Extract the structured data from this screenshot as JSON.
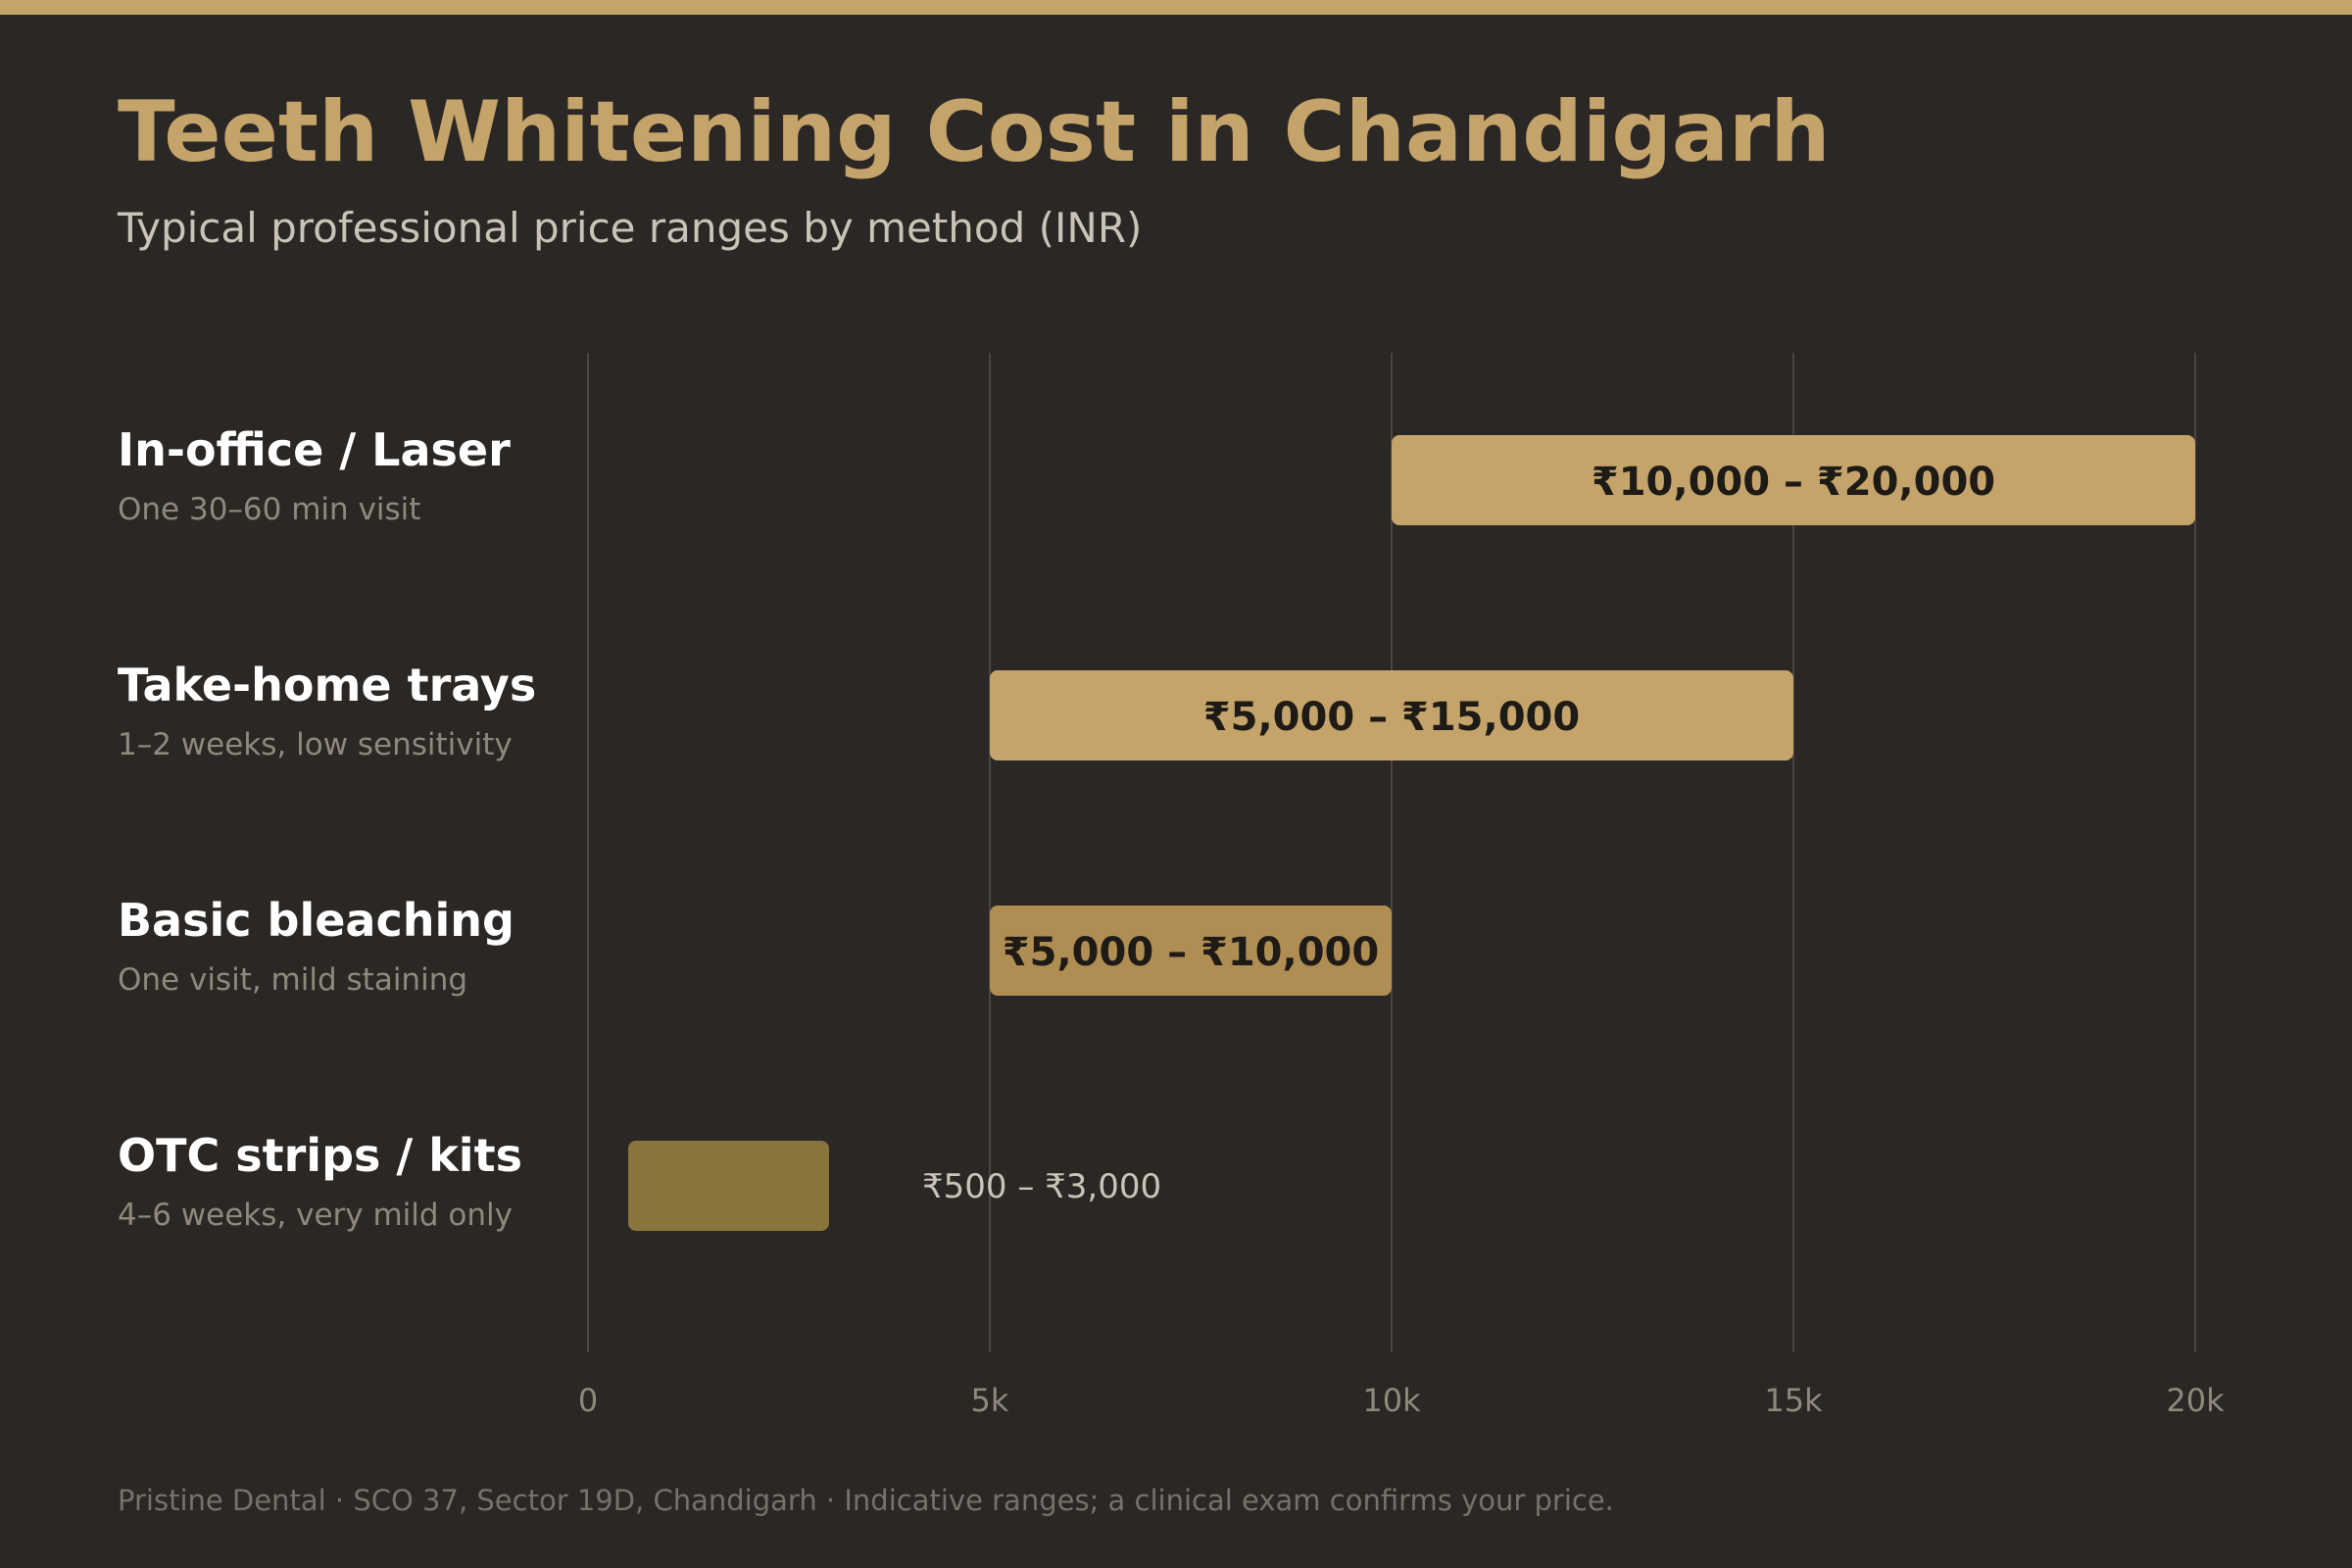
{
  "header": {
    "title": "Teeth Whitening Cost in Chandigarh",
    "subtitle": "Typical professional price ranges by method (INR)"
  },
  "colors": {
    "background": "#2b2724",
    "accent": "#c4a46b",
    "bar_mid": "#b08d52",
    "bar_low": "#8a743e",
    "gridline": "#4a4540"
  },
  "chart_data": {
    "type": "bar",
    "orientation": "horizontal",
    "range_bars": true,
    "xlim": [
      0,
      20000
    ],
    "x_ticks": [
      0,
      5000,
      10000,
      15000,
      20000
    ],
    "x_tick_labels": [
      "0",
      "5k",
      "10k",
      "15k",
      "20k"
    ],
    "grid": true,
    "categories": [
      "In-office / Laser",
      "Take-home trays",
      "Basic bleaching",
      "OTC strips / kits"
    ],
    "category_notes": [
      "One 30–60 min visit",
      "1–2 weeks, low sensitivity",
      "One visit, mild staining",
      "4–6 weeks, very mild only"
    ],
    "ranges": [
      {
        "min": 10000,
        "max": 20000,
        "label": "₹10,000 – ₹20,000"
      },
      {
        "min": 5000,
        "max": 15000,
        "label": "₹5,000 – ₹15,000"
      },
      {
        "min": 5000,
        "max": 10000,
        "label": "₹5,000 – ₹10,000"
      },
      {
        "min": 500,
        "max": 3000,
        "label": "₹500 – ₹3,000"
      }
    ],
    "bar_colors": [
      "#c4a46b",
      "#c4a46b",
      "#b08d52",
      "#8a743e"
    ],
    "title": "Teeth Whitening Cost in Chandigarh",
    "subtitle": "Typical professional price ranges by method (INR)",
    "xlabel": "",
    "ylabel": ""
  },
  "footer": {
    "note": "Pristine Dental · SCO 37, Sector 19D, Chandigarh · Indicative ranges; a clinical exam confirms your price."
  }
}
